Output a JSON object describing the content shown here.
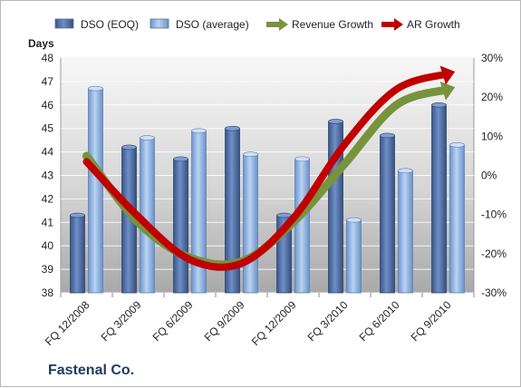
{
  "company_label": "Fastenal Co.",
  "chart_data": {
    "type": "bar",
    "categories": [
      "FQ 12/2008",
      "FQ 3/2009",
      "FQ 6/2009",
      "FQ 9/2009",
      "FQ 12/2009",
      "FQ 3/2010",
      "FQ 6/2010",
      "FQ 9/2010"
    ],
    "series": [
      {
        "name": "DSO (EOQ)",
        "type": "bar",
        "axis": "left",
        "color": "#4f6fa8",
        "values": [
          41.3,
          44.2,
          43.7,
          45.0,
          41.3,
          45.3,
          44.7,
          46.0
        ]
      },
      {
        "name": "DSO (average)",
        "type": "bar",
        "axis": "left",
        "color": "#8fb4e3",
        "values": [
          46.7,
          44.6,
          44.9,
          43.9,
          43.7,
          41.1,
          43.2,
          44.3
        ]
      },
      {
        "name": "Revenue Growth",
        "type": "line",
        "axis": "right",
        "color": "#77933c",
        "values": [
          0.05,
          -0.12,
          -0.21,
          -0.22,
          -0.12,
          0.03,
          0.18,
          0.22
        ]
      },
      {
        "name": "AR Growth",
        "type": "line",
        "axis": "right",
        "color": "#c00000",
        "values": [
          0.035,
          -0.105,
          -0.215,
          -0.225,
          -0.11,
          0.08,
          0.22,
          0.26
        ]
      }
    ],
    "ylabel": "Days",
    "ylim": [
      38,
      48
    ],
    "yticks": [
      "38",
      "39",
      "40",
      "41",
      "42",
      "43",
      "44",
      "45",
      "46",
      "47",
      "48"
    ],
    "y2lim": [
      -0.3,
      0.3
    ],
    "y2ticks": [
      "-30%",
      "-20%",
      "-10%",
      "0%",
      "10%",
      "20%",
      "30%"
    ],
    "legend_position": "top",
    "grid": "horizontal"
  }
}
